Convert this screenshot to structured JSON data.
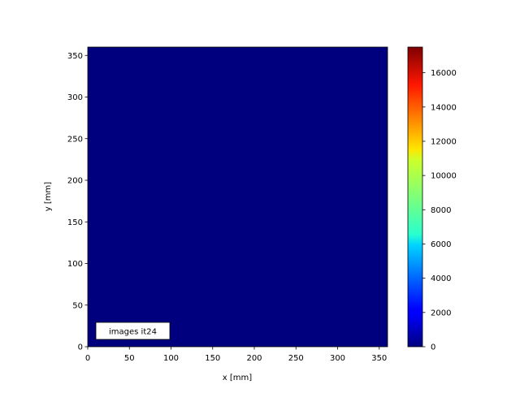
{
  "chart_data": {
    "type": "heatmap",
    "title": "",
    "xlabel": "x [mm]",
    "ylabel": "y [mm]",
    "xlim": [
      0,
      360
    ],
    "ylim": [
      0,
      360
    ],
    "xticks": [
      0,
      50,
      100,
      150,
      200,
      250,
      300,
      350
    ],
    "yticks": [
      0,
      50,
      100,
      150,
      200,
      250,
      300,
      350
    ],
    "field_value": 0,
    "field_color": "#00007f",
    "colormap": "jet",
    "colorbar": {
      "range": [
        0,
        17500
      ],
      "ticks": [
        0,
        2000,
        4000,
        6000,
        8000,
        10000,
        12000,
        14000,
        16000
      ],
      "location": "right"
    },
    "annotation": "images it24",
    "grid": false
  }
}
